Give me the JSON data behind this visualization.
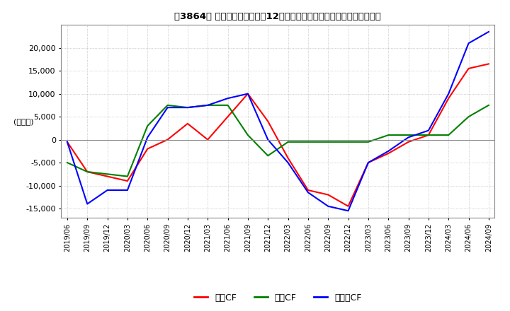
{
  "title": "［3864］ キャッシュフローの12か月移動合計の対前年同期増減額の推移",
  "ylabel": "(百万円)",
  "ylim": [
    -17000,
    25000
  ],
  "yticks": [
    -15000,
    -10000,
    -5000,
    0,
    5000,
    10000,
    15000,
    20000
  ],
  "background_color": "#ffffff",
  "plot_bg_color": "#ffffff",
  "grid_color": "#aaaaaa",
  "x_labels": [
    "2019/06",
    "2019/09",
    "2019/12",
    "2020/03",
    "2020/06",
    "2020/09",
    "2020/12",
    "2021/03",
    "2021/06",
    "2021/09",
    "2021/12",
    "2022/03",
    "2022/06",
    "2022/09",
    "2022/12",
    "2023/03",
    "2023/06",
    "2023/09",
    "2023/12",
    "2024/03",
    "2024/06",
    "2024/09"
  ],
  "営業CF_values": [
    -500,
    -7000,
    -8000,
    -9000,
    -2000,
    0,
    3500,
    0,
    5000,
    10000,
    4000,
    -4000,
    -11000,
    -12000,
    -14500,
    -5000,
    -3000,
    -500,
    1000,
    9000,
    15500,
    16500
  ],
  "投資CF_values": [
    -5000,
    -7000,
    -7500,
    -8000,
    3000,
    7500,
    7000,
    7500,
    7500,
    1000,
    -3500,
    -500,
    -500,
    -500,
    -500,
    -500,
    1000,
    1000,
    1000,
    1000,
    5000,
    7500
  ],
  "フリーCF_values": [
    -500,
    -14000,
    -11000,
    -11000,
    500,
    7000,
    7000,
    7500,
    9000,
    10000,
    0,
    -5000,
    -11500,
    -14500,
    -15500,
    -5000,
    -2500,
    500,
    2000,
    10000,
    21000,
    23500
  ],
  "colors": {
    "営業CF": "#ff0000",
    "投資CF": "#008000",
    "フリーCF": "#0000ff"
  },
  "legend_order": [
    "営業CF",
    "投資CF",
    "フリーCF"
  ]
}
